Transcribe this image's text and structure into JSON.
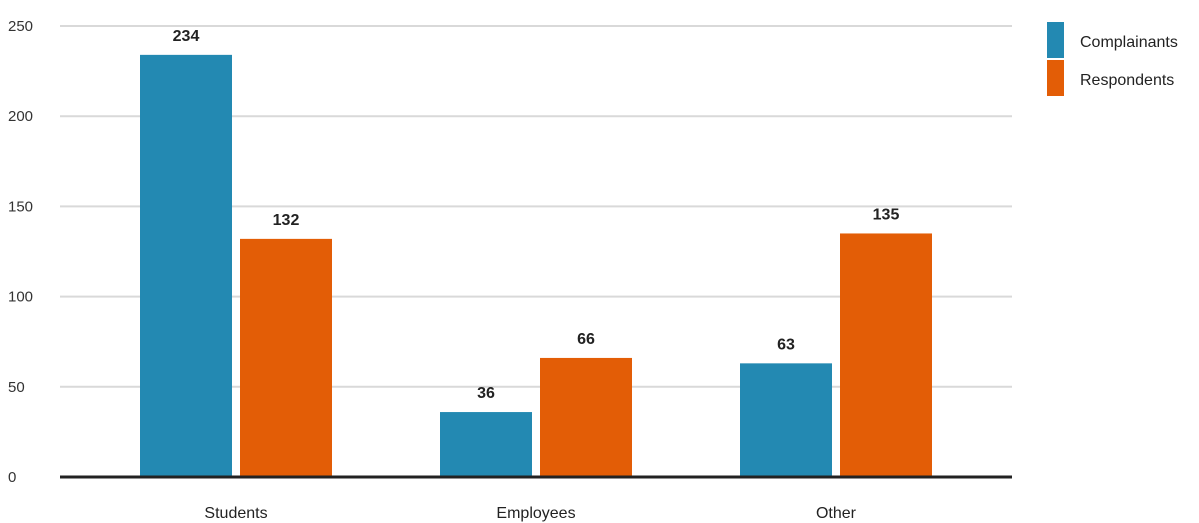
{
  "chart_data": {
    "type": "bar",
    "categories": [
      "Students",
      "Employees",
      "Other"
    ],
    "series": [
      {
        "name": "Complainants",
        "color": "#2389b2",
        "values": [
          234,
          36,
          63
        ]
      },
      {
        "name": "Respondents",
        "color": "#e35d06",
        "values": [
          132,
          66,
          135
        ]
      }
    ],
    "ylim": [
      0,
      250
    ],
    "yticks": [
      0,
      50,
      100,
      150,
      200,
      250
    ],
    "title": "",
    "xlabel": "",
    "ylabel": "",
    "grid": true,
    "legend": "top-right"
  }
}
